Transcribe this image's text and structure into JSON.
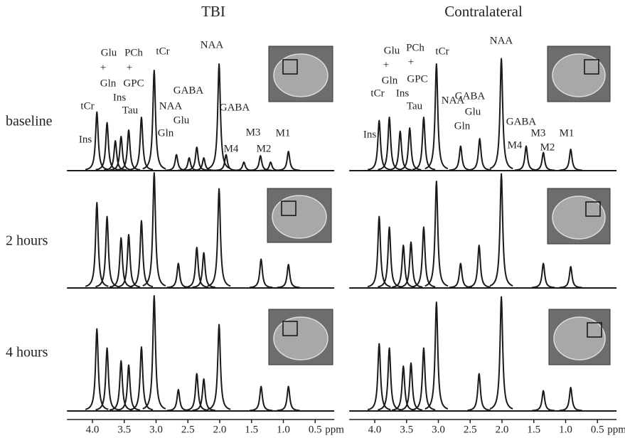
{
  "chart_data": {
    "type": "spectra",
    "row_labels": [
      "baseline",
      "2 hours",
      "4 hours"
    ],
    "x_unit": "ppm",
    "xlim": [
      4.4,
      0.2
    ],
    "xticks": [
      {
        "value": 4,
        "label": "4.0"
      },
      3.5,
      {
        "value": 3,
        "label": "3.0"
      },
      2.5,
      {
        "value": 2,
        "label": "2.0"
      },
      1.5,
      {
        "value": 1,
        "label": "1.0"
      },
      0.5
    ],
    "color": "#1a1a1a",
    "panels": [
      {
        "title": "TBI",
        "peak_labels": [
          "Glu",
          "+",
          "Gln",
          "PCh",
          "+",
          "GPC",
          "tCr",
          "NAA",
          "tCr",
          "Ins",
          "Tau",
          "NAA",
          "Glu",
          "Gln",
          "GABA",
          "GABA",
          "Ins",
          "M4",
          "M3",
          "M2",
          "M1"
        ],
        "spectra": [
          {
            "ppm": [
              3.93,
              3.77,
              3.64,
              3.55,
              3.43,
              3.23,
              3.03,
              2.68,
              2.48,
              2.36,
              2.25,
              2.01,
              1.9,
              1.62,
              1.36,
              1.2,
              0.92
            ],
            "height": [
              55,
              45,
              28,
              32,
              38,
              50,
              94,
              15,
              12,
              22,
              12,
              100,
              15,
              8,
              14,
              8,
              18
            ]
          },
          {
            "ppm": [
              3.93,
              3.77,
              3.55,
              3.43,
              3.23,
              3.03,
              2.65,
              2.36,
              2.25,
              2.01,
              1.35,
              0.92
            ],
            "height": [
              80,
              67,
              47,
              50,
              63,
              108,
              23,
              38,
              33,
              93,
              27,
              22
            ]
          },
          {
            "ppm": [
              3.93,
              3.77,
              3.55,
              3.43,
              3.23,
              3.03,
              2.65,
              2.36,
              2.25,
              2.01,
              1.35,
              0.92
            ],
            "height": [
              77,
              59,
              47,
              43,
              60,
              108,
              20,
              35,
              30,
              81,
              23,
              23
            ]
          }
        ]
      },
      {
        "title": "Contralateral",
        "peak_labels": [
          "Glu",
          "+",
          "Gln",
          "PCh",
          "+",
          "GPC",
          "tCr",
          "NAA",
          "tCr",
          "Ins",
          "Tau",
          "NAA",
          "GABA",
          "Glu",
          "Gln",
          "GABA",
          "Ins",
          "M4",
          "M3",
          "M2",
          "M1"
        ],
        "spectra": [
          {
            "ppm": [
              3.93,
              3.77,
              3.6,
              3.45,
              3.23,
              3.03,
              2.65,
              2.35,
              2.01,
              1.62,
              1.35,
              0.92
            ],
            "height": [
              47,
              50,
              37,
              40,
              50,
              100,
              23,
              30,
              105,
              23,
              17,
              20
            ]
          },
          {
            "ppm": [
              3.93,
              3.77,
              3.55,
              3.43,
              3.23,
              3.03,
              2.65,
              2.36,
              2.01,
              1.35,
              0.92
            ],
            "height": [
              67,
              57,
              40,
              43,
              57,
              100,
              23,
              40,
              107,
              23,
              20
            ]
          },
          {
            "ppm": [
              3.93,
              3.77,
              3.55,
              3.43,
              3.23,
              3.03,
              2.36,
              2.01,
              1.35,
              0.92
            ],
            "height": [
              63,
              59,
              42,
              45,
              59,
              102,
              35,
              107,
              19,
              22
            ]
          }
        ]
      }
    ]
  }
}
